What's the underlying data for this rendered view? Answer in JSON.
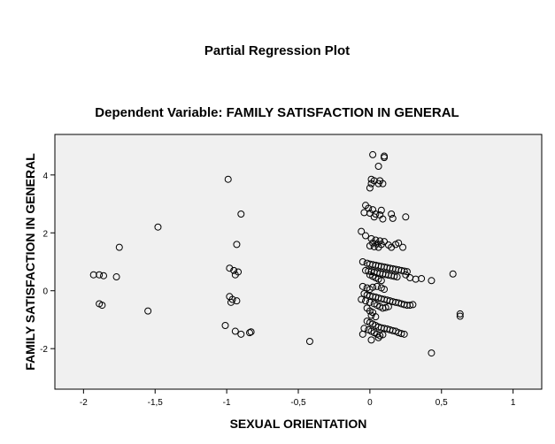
{
  "chart_data": {
    "type": "scatter",
    "title": "Partial Regression Plot",
    "subtitle": "Dependent Variable: FAMILY SATISFACTION IN GENERAL",
    "xlabel": "SEXUAL ORIENTATION",
    "ylabel": "FAMILY SATISFACTION IN GENERAL",
    "xlim": [
      -2.2,
      1.2
    ],
    "ylim": [
      -3.4,
      5.4
    ],
    "x_ticks": [
      -2,
      -1.5,
      -1,
      -0.5,
      0,
      0.5,
      1
    ],
    "x_tick_labels": [
      "-2",
      "-1,5",
      "-1",
      "-0,5",
      "0",
      "0,5",
      "1"
    ],
    "y_ticks": [
      -2,
      0,
      2,
      4
    ],
    "y_tick_labels": [
      "-2",
      "0",
      "2",
      "4"
    ],
    "grid": false,
    "plot_background": "#f0f0f0",
    "marker": "open-circle",
    "points": [
      [
        0.02,
        4.7
      ],
      [
        0.1,
        4.65
      ],
      [
        0.1,
        4.6
      ],
      [
        0.06,
        4.3
      ],
      [
        0.01,
        3.85
      ],
      [
        0.03,
        3.8
      ],
      [
        0.07,
        3.8
      ],
      [
        0.01,
        3.7
      ],
      [
        0.06,
        3.7
      ],
      [
        0.09,
        3.7
      ],
      [
        0.0,
        3.55
      ],
      [
        -0.03,
        2.95
      ],
      [
        -0.01,
        2.85
      ],
      [
        0.02,
        2.8
      ],
      [
        0.08,
        2.78
      ],
      [
        -0.04,
        2.7
      ],
      [
        0.0,
        2.68
      ],
      [
        0.04,
        2.65
      ],
      [
        0.07,
        2.62
      ],
      [
        0.15,
        2.65
      ],
      [
        0.25,
        2.55
      ],
      [
        0.03,
        2.55
      ],
      [
        0.16,
        2.5
      ],
      [
        0.09,
        2.48
      ],
      [
        -0.06,
        2.05
      ],
      [
        -0.03,
        1.9
      ],
      [
        0.01,
        1.8
      ],
      [
        0.04,
        1.75
      ],
      [
        0.07,
        1.72
      ],
      [
        0.1,
        1.7
      ],
      [
        0.02,
        1.65
      ],
      [
        0.05,
        1.62
      ],
      [
        0.08,
        1.6
      ],
      [
        0.13,
        1.58
      ],
      [
        0.18,
        1.6
      ],
      [
        0.2,
        1.65
      ],
      [
        0.0,
        1.55
      ],
      [
        0.03,
        1.52
      ],
      [
        0.06,
        1.5
      ],
      [
        0.15,
        1.5
      ],
      [
        0.23,
        1.5
      ],
      [
        -0.05,
        1.0
      ],
      [
        -0.02,
        0.95
      ],
      [
        0.0,
        0.92
      ],
      [
        0.02,
        0.9
      ],
      [
        0.04,
        0.88
      ],
      [
        0.06,
        0.86
      ],
      [
        0.08,
        0.84
      ],
      [
        0.1,
        0.82
      ],
      [
        0.12,
        0.8
      ],
      [
        0.14,
        0.78
      ],
      [
        0.16,
        0.76
      ],
      [
        0.18,
        0.74
      ],
      [
        0.2,
        0.72
      ],
      [
        0.22,
        0.7
      ],
      [
        0.24,
        0.68
      ],
      [
        0.26,
        0.66
      ],
      [
        -0.03,
        0.7
      ],
      [
        -0.01,
        0.68
      ],
      [
        0.01,
        0.66
      ],
      [
        0.03,
        0.64
      ],
      [
        0.05,
        0.62
      ],
      [
        0.07,
        0.6
      ],
      [
        0.09,
        0.58
      ],
      [
        0.11,
        0.56
      ],
      [
        0.13,
        0.54
      ],
      [
        0.15,
        0.52
      ],
      [
        0.17,
        0.5
      ],
      [
        0.19,
        0.48
      ],
      [
        0.0,
        0.55
      ],
      [
        0.02,
        0.5
      ],
      [
        0.04,
        0.45
      ],
      [
        0.06,
        0.4
      ],
      [
        0.08,
        0.35
      ],
      [
        0.25,
        0.55
      ],
      [
        0.28,
        0.45
      ],
      [
        0.32,
        0.4
      ],
      [
        0.36,
        0.42
      ],
      [
        0.43,
        0.35
      ],
      [
        0.58,
        0.58
      ],
      [
        -0.05,
        0.15
      ],
      [
        -0.02,
        0.1
      ],
      [
        0.0,
        0.05
      ],
      [
        0.02,
        0.12
      ],
      [
        0.05,
        0.15
      ],
      [
        0.08,
        0.1
      ],
      [
        0.1,
        0.05
      ],
      [
        -0.04,
        -0.1
      ],
      [
        -0.02,
        -0.15
      ],
      [
        0.0,
        -0.18
      ],
      [
        0.02,
        -0.2
      ],
      [
        0.04,
        -0.22
      ],
      [
        0.06,
        -0.25
      ],
      [
        0.08,
        -0.28
      ],
      [
        0.1,
        -0.3
      ],
      [
        0.12,
        -0.32
      ],
      [
        0.14,
        -0.35
      ],
      [
        0.16,
        -0.38
      ],
      [
        0.18,
        -0.4
      ],
      [
        0.2,
        -0.42
      ],
      [
        0.22,
        -0.45
      ],
      [
        0.24,
        -0.48
      ],
      [
        0.26,
        -0.5
      ],
      [
        0.28,
        -0.5
      ],
      [
        0.3,
        -0.48
      ],
      [
        -0.06,
        -0.3
      ],
      [
        -0.03,
        -0.35
      ],
      [
        0.0,
        -0.4
      ],
      [
        0.03,
        -0.45
      ],
      [
        0.05,
        -0.5
      ],
      [
        0.07,
        -0.55
      ],
      [
        0.09,
        -0.6
      ],
      [
        0.11,
        -0.58
      ],
      [
        0.13,
        -0.55
      ],
      [
        -0.02,
        -0.6
      ],
      [
        0.0,
        -0.7
      ],
      [
        0.02,
        -0.75
      ],
      [
        0.01,
        -0.85
      ],
      [
        0.04,
        -0.9
      ],
      [
        -0.02,
        -1.05
      ],
      [
        0.0,
        -1.1
      ],
      [
        0.02,
        -1.15
      ],
      [
        0.04,
        -1.2
      ],
      [
        0.06,
        -1.25
      ],
      [
        0.08,
        -1.28
      ],
      [
        0.1,
        -1.3
      ],
      [
        0.12,
        -1.32
      ],
      [
        0.14,
        -1.35
      ],
      [
        0.16,
        -1.38
      ],
      [
        0.18,
        -1.4
      ],
      [
        0.2,
        -1.45
      ],
      [
        0.22,
        -1.48
      ],
      [
        0.24,
        -1.5
      ],
      [
        -0.04,
        -1.3
      ],
      [
        -0.01,
        -1.35
      ],
      [
        0.01,
        -1.4
      ],
      [
        0.03,
        -1.45
      ],
      [
        0.05,
        -1.5
      ],
      [
        0.07,
        -1.55
      ],
      [
        0.09,
        -1.52
      ],
      [
        -0.05,
        -1.5
      ],
      [
        0.01,
        -1.7
      ],
      [
        0.06,
        -1.62
      ],
      [
        -0.99,
        3.85
      ],
      [
        -0.9,
        2.65
      ],
      [
        -0.93,
        1.6
      ],
      [
        -0.98,
        0.78
      ],
      [
        -0.95,
        0.7
      ],
      [
        -0.92,
        0.65
      ],
      [
        -0.94,
        0.55
      ],
      [
        -0.98,
        -0.2
      ],
      [
        -0.96,
        -0.3
      ],
      [
        -0.93,
        -0.35
      ],
      [
        -0.97,
        -0.4
      ],
      [
        -1.01,
        -1.2
      ],
      [
        -0.94,
        -1.4
      ],
      [
        -0.9,
        -1.5
      ],
      [
        -0.84,
        -1.45
      ],
      [
        -0.83,
        -1.42
      ],
      [
        -1.48,
        2.2
      ],
      [
        -1.75,
        1.5
      ],
      [
        -1.55,
        -0.7
      ],
      [
        -1.93,
        0.55
      ],
      [
        -1.89,
        0.55
      ],
      [
        -1.86,
        0.52
      ],
      [
        -1.77,
        0.48
      ],
      [
        -1.89,
        -0.45
      ],
      [
        -1.87,
        -0.5
      ],
      [
        -0.42,
        -1.75
      ],
      [
        0.43,
        -2.15
      ],
      [
        0.63,
        -0.8
      ],
      [
        0.63,
        -0.88
      ]
    ]
  }
}
